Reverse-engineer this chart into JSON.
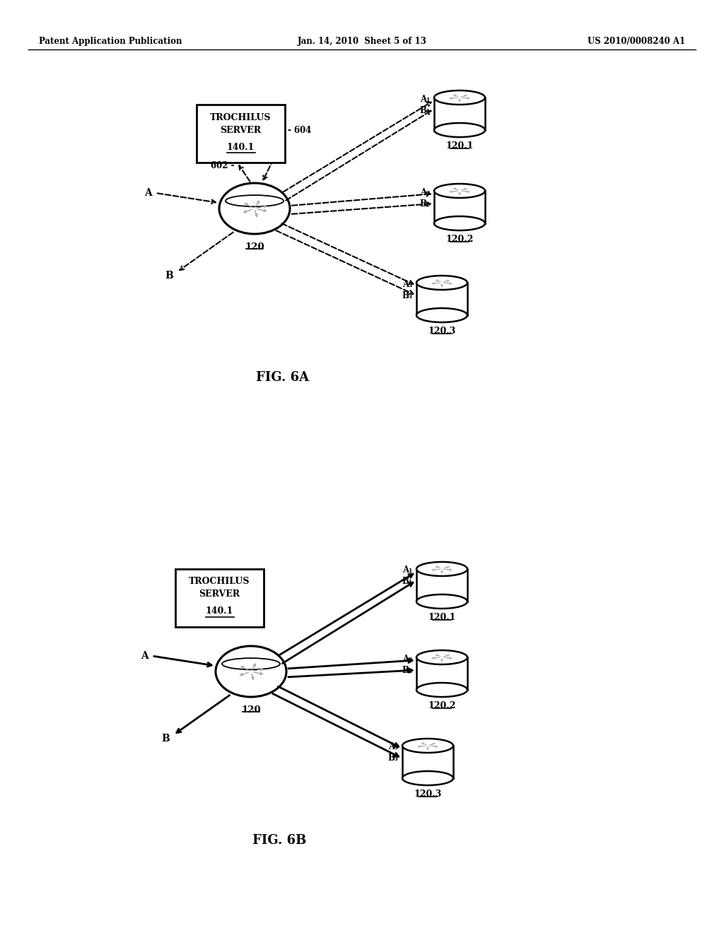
{
  "header_left": "Patent Application Publication",
  "header_mid": "Jan. 14, 2010  Sheet 5 of 13",
  "header_right": "US 2010/0008240 A1",
  "fig_label_a": "FIG. 6A",
  "fig_label_b": "FIG. 6B",
  "background_color": "#ffffff",
  "line_color": "#000000"
}
